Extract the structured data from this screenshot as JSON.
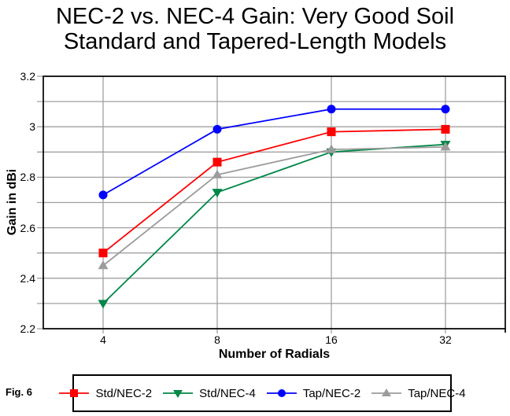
{
  "header": {
    "title_line1": "NEC-2 vs. NEC-4 Gain: Very Good Soil",
    "title_line2": "Standard and Tapered-Length Models"
  },
  "figure_label": "Fig. 6",
  "colors": {
    "grid": "#a0a0a0",
    "plot_border": "#000000",
    "background": "#ffffff"
  },
  "chart_data": {
    "type": "line",
    "title": "NEC-2 vs. NEC-4 Gain: Very Good Soil — Standard and Tapered-Length Models",
    "xlabel": "Number of Radials",
    "ylabel": "Gain in dBi",
    "categories": [
      "4",
      "8",
      "16",
      "32"
    ],
    "ylim": [
      2.2,
      3.2
    ],
    "grid_step": 0.1,
    "grid": true,
    "legend_position": "bottom",
    "yticks": [
      {
        "value": 3.2,
        "label": "3.2"
      },
      {
        "value": 3.0,
        "label": "3"
      },
      {
        "value": 2.8,
        "label": "2.8"
      },
      {
        "value": 2.6,
        "label": "2.6"
      },
      {
        "value": 2.4,
        "label": "2.4"
      },
      {
        "value": 2.2,
        "label": "2.2"
      }
    ],
    "series": [
      {
        "name": "Std/NEC-2",
        "color": "#ff0000",
        "marker": "square",
        "values": [
          2.5,
          2.86,
          2.98,
          2.99
        ]
      },
      {
        "name": "Std/NEC-4",
        "color": "#008747",
        "marker": "triangle-down",
        "values": [
          2.3,
          2.74,
          2.9,
          2.93
        ]
      },
      {
        "name": "Tap/NEC-2",
        "color": "#0000ff",
        "marker": "circle",
        "values": [
          2.73,
          2.99,
          3.07,
          3.07
        ]
      },
      {
        "name": "Tap/NEC-4",
        "color": "#9c9c9c",
        "marker": "triangle-up",
        "values": [
          2.45,
          2.81,
          2.91,
          2.92
        ]
      }
    ]
  }
}
